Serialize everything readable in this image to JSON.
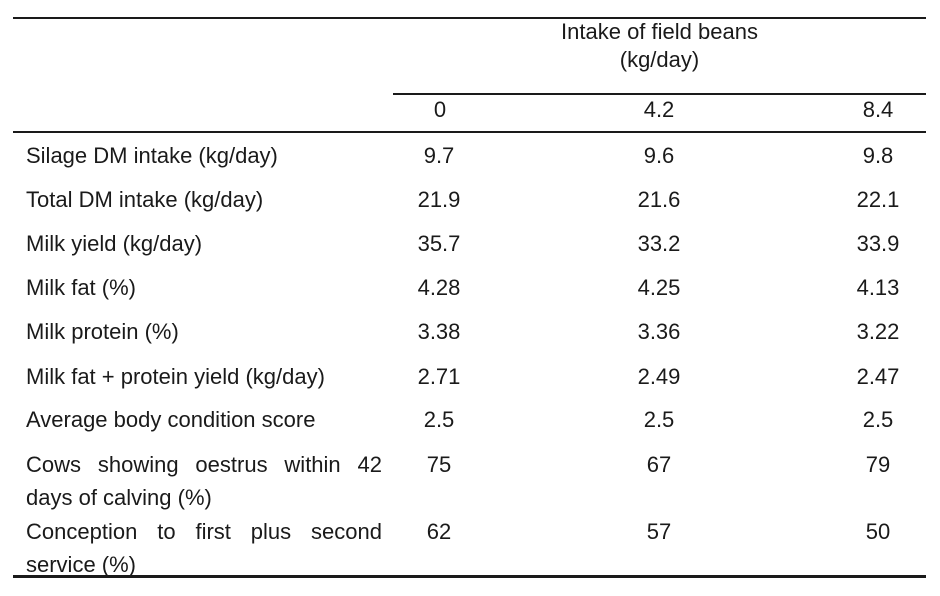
{
  "table": {
    "group_header_line1": "Intake of field beans",
    "group_header_line2": "(kg/day)",
    "columns": [
      "0",
      "4.2",
      "8.4"
    ],
    "rows": [
      {
        "label": "Silage DM intake (kg/day)",
        "values": [
          "9.7",
          "9.6",
          "9.8"
        ]
      },
      {
        "label": "Total DM intake (kg/day)",
        "values": [
          "21.9",
          "21.6",
          "22.1"
        ]
      },
      {
        "label": "Milk yield (kg/day)",
        "values": [
          "35.7",
          "33.2",
          "33.9"
        ]
      },
      {
        "label": "Milk fat (%)",
        "values": [
          "4.28",
          "4.25",
          "4.13"
        ]
      },
      {
        "label": "Milk protein (%)",
        "values": [
          "3.38",
          "3.36",
          "3.22"
        ]
      },
      {
        "label": "Milk fat + protein yield (kg/day)",
        "values": [
          "2.71",
          "2.49",
          "2.47"
        ]
      },
      {
        "label": "Average body condition score",
        "values": [
          "2.5",
          "2.5",
          "2.5"
        ]
      },
      {
        "label": "Cows showing oestrus within 42 days of calving (%)",
        "values": [
          "75",
          "67",
          "79"
        ]
      },
      {
        "label": "Conception to first plus second service (%)",
        "values": [
          "62",
          "57",
          "50"
        ]
      }
    ]
  }
}
